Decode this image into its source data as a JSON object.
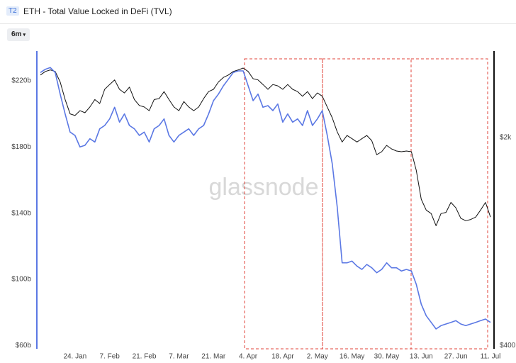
{
  "header": {
    "badge": "T2",
    "title": "ETH - Total Value Locked in DeFi (TVL)",
    "range_button": "6m"
  },
  "chart_data": {
    "type": "line",
    "watermark": "glassnode",
    "x": [
      "10. Jan",
      "12. Jan",
      "14. Jan",
      "16. Jan",
      "18. Jan",
      "20. Jan",
      "22. Jan",
      "24. Jan",
      "26. Jan",
      "28. Jan",
      "30. Jan",
      "1. Feb",
      "3. Feb",
      "5. Feb",
      "7. Feb",
      "9. Feb",
      "11. Feb",
      "13. Feb",
      "15. Feb",
      "17. Feb",
      "19. Feb",
      "21. Feb",
      "23. Feb",
      "25. Feb",
      "27. Feb",
      "1. Mar",
      "3. Mar",
      "5. Mar",
      "7. Mar",
      "9. Mar",
      "11. Mar",
      "13. Mar",
      "15. Mar",
      "17. Mar",
      "19. Mar",
      "21. Mar",
      "23. Mar",
      "25. Mar",
      "27. Mar",
      "29. Mar",
      "31. Mar",
      "2. Apr",
      "4. Apr",
      "6. Apr",
      "8. Apr",
      "10. Apr",
      "12. Apr",
      "14. Apr",
      "16. Apr",
      "18. Apr",
      "20. Apr",
      "22. Apr",
      "24. Apr",
      "26. Apr",
      "28. Apr",
      "30. Apr",
      "2. May",
      "4. May",
      "6. May",
      "8. May",
      "10. May",
      "12. May",
      "14. May",
      "16. May",
      "18. May",
      "20. May",
      "22. May",
      "24. May",
      "26. May",
      "28. May",
      "30. May",
      "1. Jun",
      "3. Jun",
      "5. Jun",
      "7. Jun",
      "9. Jun",
      "11. Jun",
      "13. Jun",
      "15. Jun",
      "17. Jun",
      "19. Jun",
      "21. Jun",
      "23. Jun",
      "25. Jun",
      "27. Jun",
      "29. Jun",
      "1. Jul",
      "3. Jul",
      "5. Jul",
      "7. Jul",
      "9. Jul",
      "11. Jul"
    ],
    "xticks": [
      "24. Jan",
      "7. Feb",
      "21. Feb",
      "7. Mar",
      "21. Mar",
      "4. Apr",
      "18. Apr",
      "2. May",
      "16. May",
      "30. May",
      "13. Jun",
      "27. Jun",
      "11. Jul"
    ],
    "series": [
      {
        "color": "#5b78e4",
        "values": [
          225,
          227,
          228,
          225,
          212,
          200,
          189,
          187,
          180,
          181,
          185,
          183,
          191,
          193,
          197,
          204,
          195,
          200,
          193,
          191,
          187,
          189,
          183,
          191,
          193,
          197,
          187,
          183,
          187,
          189,
          191,
          187,
          191,
          193,
          200,
          208,
          212,
          217,
          221,
          225,
          226,
          226,
          217,
          208,
          212,
          204,
          205,
          202,
          206,
          195,
          200,
          195,
          197,
          193,
          202,
          193,
          197,
          202,
          187,
          170,
          144,
          110,
          110,
          111,
          108,
          106,
          109,
          107,
          104,
          106,
          110,
          107,
          107,
          105,
          106,
          105,
          97,
          85,
          78,
          74,
          70,
          72,
          73,
          74,
          75,
          73,
          72,
          73,
          74,
          75,
          76,
          74
        ]
      },
      {
        "color": "#111111",
        "axis": "y2",
        "values": [
          3240,
          3330,
          3370,
          3330,
          3070,
          2680,
          2400,
          2370,
          2460,
          2420,
          2530,
          2680,
          2600,
          2900,
          3010,
          3120,
          2900,
          2820,
          2950,
          2680,
          2560,
          2530,
          2460,
          2680,
          2700,
          2850,
          2680,
          2530,
          2460,
          2640,
          2530,
          2460,
          2530,
          2700,
          2850,
          2900,
          3070,
          3180,
          3240,
          3330,
          3370,
          3420,
          3330,
          3150,
          3120,
          3010,
          2900,
          3010,
          2980,
          2900,
          3010,
          2900,
          2850,
          2750,
          2850,
          2700,
          2820,
          2750,
          2530,
          2330,
          2090,
          1930,
          2030,
          1980,
          1930,
          1980,
          2030,
          1950,
          1750,
          1790,
          1880,
          1830,
          1800,
          1790,
          1800,
          1790,
          1550,
          1240,
          1140,
          1110,
          1010,
          1110,
          1120,
          1210,
          1160,
          1070,
          1050,
          1060,
          1080,
          1140,
          1210,
          1080
        ]
      }
    ],
    "ylim": [
      58,
      238
    ],
    "yticks": [
      {
        "value": 60,
        "label": "$60b"
      },
      {
        "value": 100,
        "label": "$100b"
      },
      {
        "value": 140,
        "label": "$140b"
      },
      {
        "value": 180,
        "label": "$180b"
      },
      {
        "value": 220,
        "label": "$220b"
      }
    ],
    "y2lim": [
      390,
      3900
    ],
    "y2log": true,
    "y2ticks": [
      {
        "value": 400,
        "label": "$400"
      },
      {
        "value": 2000,
        "label": "$2k"
      }
    ],
    "grid": false
  }
}
